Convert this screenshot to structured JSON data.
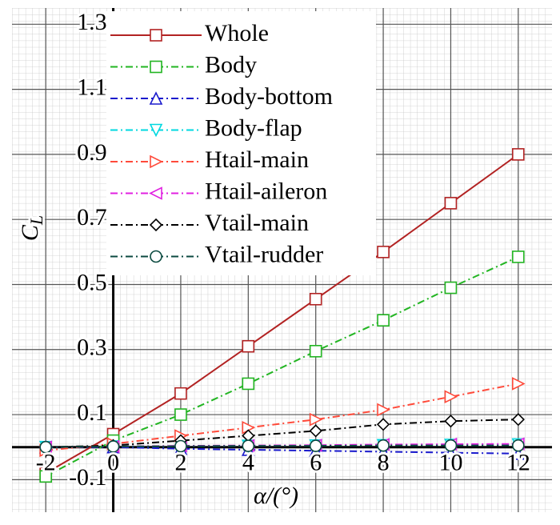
{
  "chart_data": {
    "type": "line",
    "xlabel": "α/(°)",
    "ylabel": "C",
    "ylabel_subscript": "L",
    "x": [
      -2,
      0,
      2,
      4,
      6,
      8,
      10,
      12
    ],
    "xlim": [
      -3,
      13
    ],
    "xticks": [
      -2,
      0,
      2,
      4,
      6,
      8,
      10,
      12
    ],
    "ylim": [
      -0.2,
      1.35
    ],
    "yticks": [
      -0.1,
      0.1,
      0.3,
      0.5,
      0.7,
      0.9,
      1.1,
      1.3
    ],
    "grid": true,
    "legend": "upper left",
    "series": [
      {
        "name": "Whole",
        "color": "#b22222",
        "marker": "square",
        "linestyle": "solid",
        "values": [
          -0.08,
          0.04,
          0.165,
          0.31,
          0.455,
          0.6,
          0.75,
          0.9
        ]
      },
      {
        "name": "Body",
        "color": "#22b522",
        "marker": "square",
        "linestyle": "dashdot",
        "values": [
          -0.09,
          0.02,
          0.1,
          0.195,
          0.295,
          0.39,
          0.49,
          0.585
        ]
      },
      {
        "name": "Body-bottom",
        "color": "#1a1acd",
        "marker": "triangle-up",
        "linestyle": "dashdot",
        "values": [
          0,
          0,
          -0.005,
          -0.008,
          -0.011,
          -0.014,
          -0.017,
          -0.02
        ]
      },
      {
        "name": "Body-flap",
        "color": "#00d8e0",
        "marker": "triangle-down",
        "linestyle": "dashdot",
        "values": [
          0,
          0.002,
          0.003,
          0.004,
          0.005,
          0.006,
          0.007,
          0.008
        ]
      },
      {
        "name": "Htail-main",
        "color": "#ff4a3a",
        "marker": "triangle-right",
        "linestyle": "dashdot",
        "values": [
          -0.01,
          0.01,
          0.035,
          0.06,
          0.085,
          0.115,
          0.155,
          0.195
        ]
      },
      {
        "name": "Htail-aileron",
        "color": "#e020e0",
        "marker": "triangle-left",
        "linestyle": "dashdot",
        "values": [
          0,
          0.002,
          0.004,
          0.005,
          0.006,
          0.008,
          0.009,
          0.01
        ]
      },
      {
        "name": "Vtail-main",
        "color": "#000000",
        "marker": "diamond",
        "linestyle": "dashdot",
        "values": [
          0,
          0.005,
          0.02,
          0.035,
          0.05,
          0.07,
          0.08,
          0.085
        ]
      },
      {
        "name": "Vtail-rudder",
        "color": "#0b4a40",
        "marker": "circle",
        "linestyle": "dashdot",
        "values": [
          0,
          0.002,
          0.003,
          0.004,
          0.004,
          0.005,
          0.005,
          0.005
        ]
      }
    ]
  }
}
